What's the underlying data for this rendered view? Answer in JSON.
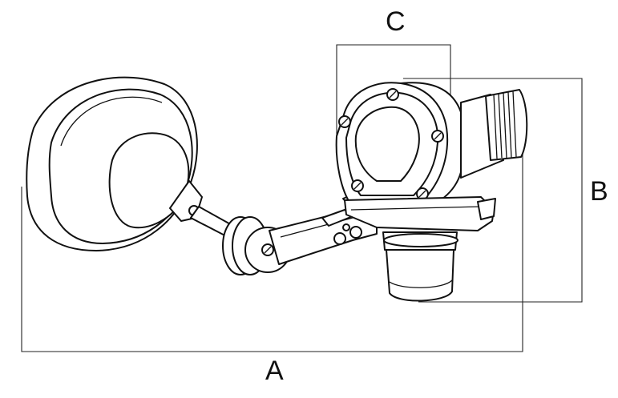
{
  "labels": {
    "a": "A",
    "b": "B",
    "c": "C"
  }
}
